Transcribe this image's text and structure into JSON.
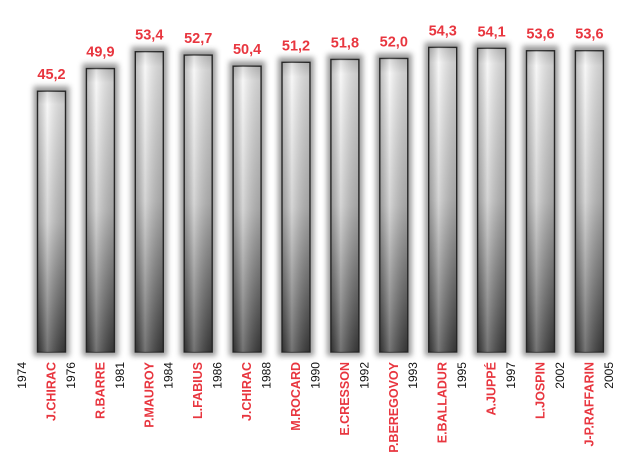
{
  "colors": {
    "accent": "#e8363f",
    "year_text": "#111111",
    "bar_light": "#f4f4f4",
    "bar_dark": "#3e3e3e"
  },
  "chart_data": {
    "type": "bar",
    "title": "",
    "xlabel": "",
    "ylabel": "",
    "ylim": [
      0,
      55
    ],
    "grid": false,
    "legend": "none",
    "categories": [
      "J.CHIRAC",
      "R.BARRE",
      "P.MAUROY",
      "L.FABIUS",
      "J.CHIRAC",
      "M.ROCARD",
      "E.CRESSON",
      "P.BEREGOVOY",
      "E.BALLADUR",
      "A.JUPPÉ",
      "L.JOSPIN",
      "J-P.RAFFARIN"
    ],
    "values": [
      45.2,
      49.9,
      53.4,
      52.7,
      50.4,
      51.2,
      51.8,
      52.0,
      54.3,
      54.1,
      53.6,
      53.6
    ],
    "value_labels": [
      "45,2",
      "49,9",
      "53,4",
      "52,7",
      "50,4",
      "51,2",
      "51,8",
      "52,0",
      "54,3",
      "54,1",
      "53,6",
      "53,6"
    ],
    "year_ticks": [
      "1974",
      "1976",
      "1981",
      "1984",
      "1986",
      "1988",
      "1990",
      "1992",
      "1993",
      "1995",
      "1997",
      "2002",
      "2005"
    ]
  }
}
